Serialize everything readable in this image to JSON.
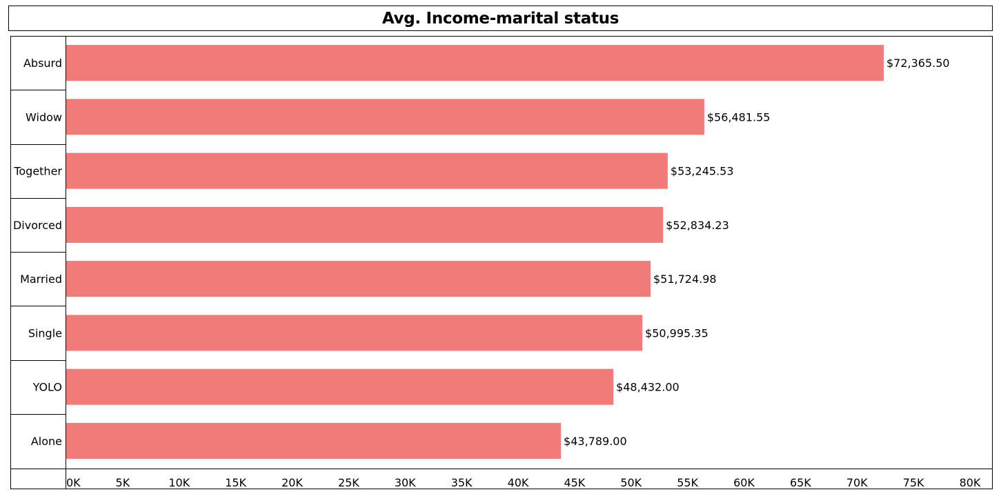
{
  "chart_data": {
    "type": "bar",
    "orientation": "horizontal",
    "title": "Avg. Income-marital status",
    "categories": [
      "Absurd",
      "Widow",
      "Together",
      "Divorced",
      "Married",
      "Single",
      "YOLO",
      "Alone"
    ],
    "values": [
      72365.5,
      56481.55,
      53245.53,
      52834.23,
      51724.98,
      50995.35,
      48432.0,
      43789.0
    ],
    "value_labels": [
      "$72,365.50",
      "$56,481.55",
      "$53,245.53",
      "$52,834.23",
      "$51,724.98",
      "$50,995.35",
      "$48,432.00",
      "$43,789.00"
    ],
    "xticks": [
      0,
      5000,
      10000,
      15000,
      20000,
      25000,
      30000,
      35000,
      40000,
      45000,
      50000,
      55000,
      60000,
      65000,
      70000,
      75000,
      80000
    ],
    "xtick_labels": [
      "0K",
      "5K",
      "10K",
      "15K",
      "20K",
      "25K",
      "30K",
      "35K",
      "40K",
      "45K",
      "50K",
      "55K",
      "60K",
      "65K",
      "70K",
      "75K",
      "80K"
    ],
    "xlim": [
      0,
      80000
    ],
    "xlabel": "",
    "ylabel": "",
    "grid": false,
    "bar_color": "#f07b78"
  }
}
